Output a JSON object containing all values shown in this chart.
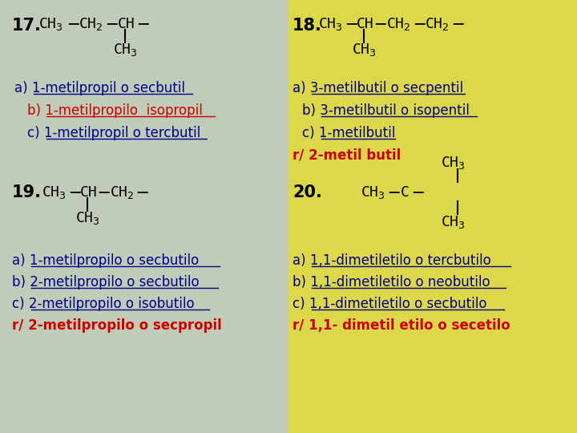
{
  "bg_left": "#c0cbb8",
  "bg_right": "#ddd84a",
  "figsize": [
    7.2,
    5.4
  ],
  "dpi": 100,
  "answers17": [
    {
      "text": "a) 1-metilpropil o secbutil",
      "color": "#00008B",
      "underline": true,
      "bold": false,
      "red_prefix": false
    },
    {
      "text": "b) 1-metilpropilo  isopropil",
      "color": "#cc0000",
      "underline": true,
      "bold": false,
      "red_prefix": false
    },
    {
      "text": "c) 1-metilpropil o tercbutil",
      "color": "#00008B",
      "underline": true,
      "bold": false,
      "red_prefix": false
    }
  ],
  "answers18": [
    {
      "text": "a) 3-metilbutil o secpentil",
      "color": "#00008B",
      "underline": true,
      "bold": false
    },
    {
      "text": "b) 3-metilbutil o isopentil",
      "color": "#00008B",
      "underline": true,
      "bold": false
    },
    {
      "text": "c) 1-metilbutil",
      "color": "#00008B",
      "underline": true,
      "bold": false
    },
    {
      "text": "r/ 2-metil butil",
      "color": "#cc0000",
      "underline": false,
      "bold": true
    }
  ],
  "answers19": [
    {
      "text": "a) 1-metilpropilo o secbutilo",
      "color": "#00008B",
      "underline": true,
      "bold": false
    },
    {
      "text": "b) 2-metilpropilo o secbutilo",
      "color": "#00008B",
      "underline": true,
      "bold": false
    },
    {
      "text": "c) 2-metilpropilo o isobutilo",
      "color": "#00008B",
      "underline": true,
      "bold": false
    },
    {
      "text": "r/ 2-metilpropilo o secpropil",
      "color": "#cc0000",
      "underline": false,
      "bold": true
    }
  ],
  "answers20": [
    {
      "text": "a) 1,1-dimetiletilo o tercbutilo",
      "color": "#00008B",
      "underline": true,
      "bold": false
    },
    {
      "text": "b) 1,1-dimetiletilo o neobutilo",
      "color": "#00008B",
      "underline": true,
      "bold": false
    },
    {
      "text": "c) 1,1-dimetiletilo o secbutilo",
      "color": "#00008B",
      "underline": true,
      "bold": false
    },
    {
      "text": "r/ 1,1- dimetil etilo o secetilo",
      "color": "#cc0000",
      "underline": false,
      "bold": true
    }
  ]
}
